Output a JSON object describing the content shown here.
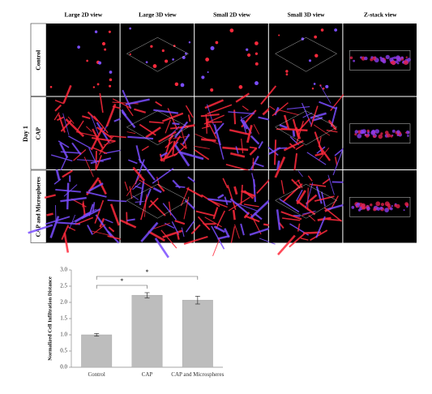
{
  "figure": {
    "columns": [
      "Large 2D view",
      "Large 3D view",
      "Small 2D view",
      "Small 3D view",
      "Z-stack view"
    ],
    "rows": [
      "Control",
      "CAP",
      "CAP and Microspheres"
    ],
    "group": "Day 1"
  },
  "chart_data": {
    "type": "bar",
    "ylabel": "Normalized Cell Infiltration Distance",
    "categories": [
      "Control",
      "CAP",
      "CAP and Microspheres"
    ],
    "values": [
      1.0,
      2.22,
      2.07
    ],
    "errors": [
      0.04,
      0.08,
      0.12
    ],
    "color": "#bdbdbd",
    "ylim": [
      0,
      3
    ],
    "yticks": [
      {
        "value": 0,
        "label": "0.0"
      },
      {
        "value": 0.5,
        "label": "0.5"
      },
      {
        "value": 1,
        "label": "1.0"
      },
      {
        "value": 1.5,
        "label": "1.5"
      },
      {
        "value": 2,
        "label": "2.0"
      },
      {
        "value": 2.5,
        "label": "2.5"
      },
      {
        "value": 3,
        "label": "3.0"
      }
    ],
    "annotations": [
      {
        "from": 0,
        "to": 1,
        "label": "*"
      },
      {
        "from": 0,
        "to": 2,
        "label": "*"
      }
    ]
  }
}
